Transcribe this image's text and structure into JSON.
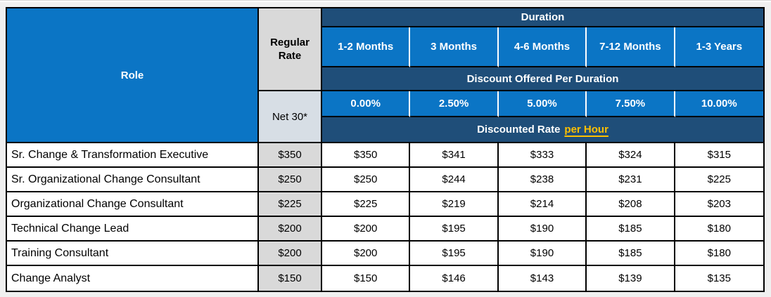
{
  "colors": {
    "bright_blue": "#0B75C5",
    "navy": "#1F4E79",
    "gray_header": "#D9D9D9",
    "net30_bg": "#D7DEE5",
    "gold": "#FFC000",
    "border": "#000000",
    "page_background": "#F0F0F0"
  },
  "table": {
    "role_header": "Role",
    "regular_rate_header": "Regular Rate",
    "net30_label": "Net 30*",
    "duration_header": "Duration",
    "duration_columns": [
      "1-2 Months",
      "3 Months",
      "4-6 Months",
      "7-12 Months",
      "1-3 Years"
    ],
    "discount_header": "Discount Offered Per Duration",
    "discounts": [
      "0.00%",
      "2.50%",
      "5.00%",
      "7.50%",
      "10.00%"
    ],
    "discounted_rate_label": "Discounted Rate",
    "discounted_rate_link": "per Hour",
    "rows": [
      {
        "role": "Sr. Change & Transformation Executive",
        "regular_rate": "$350",
        "rates": [
          "$350",
          "$341",
          "$333",
          "$324",
          "$315"
        ]
      },
      {
        "role": "Sr. Organizational Change Consultant",
        "regular_rate": "$250",
        "rates": [
          "$250",
          "$244",
          "$238",
          "$231",
          "$225"
        ]
      },
      {
        "role": "Organizational Change Consultant",
        "regular_rate": "$225",
        "rates": [
          "$225",
          "$219",
          "$214",
          "$208",
          "$203"
        ]
      },
      {
        "role": "Technical Change Lead",
        "regular_rate": "$200",
        "rates": [
          "$200",
          "$195",
          "$190",
          "$185",
          "$180"
        ]
      },
      {
        "role": "Training Consultant",
        "regular_rate": "$200",
        "rates": [
          "$200",
          "$195",
          "$190",
          "$185",
          "$180"
        ]
      },
      {
        "role": "Change Analyst",
        "regular_rate": "$150",
        "rates": [
          "$150",
          "$146",
          "$143",
          "$139",
          "$135"
        ]
      }
    ]
  }
}
